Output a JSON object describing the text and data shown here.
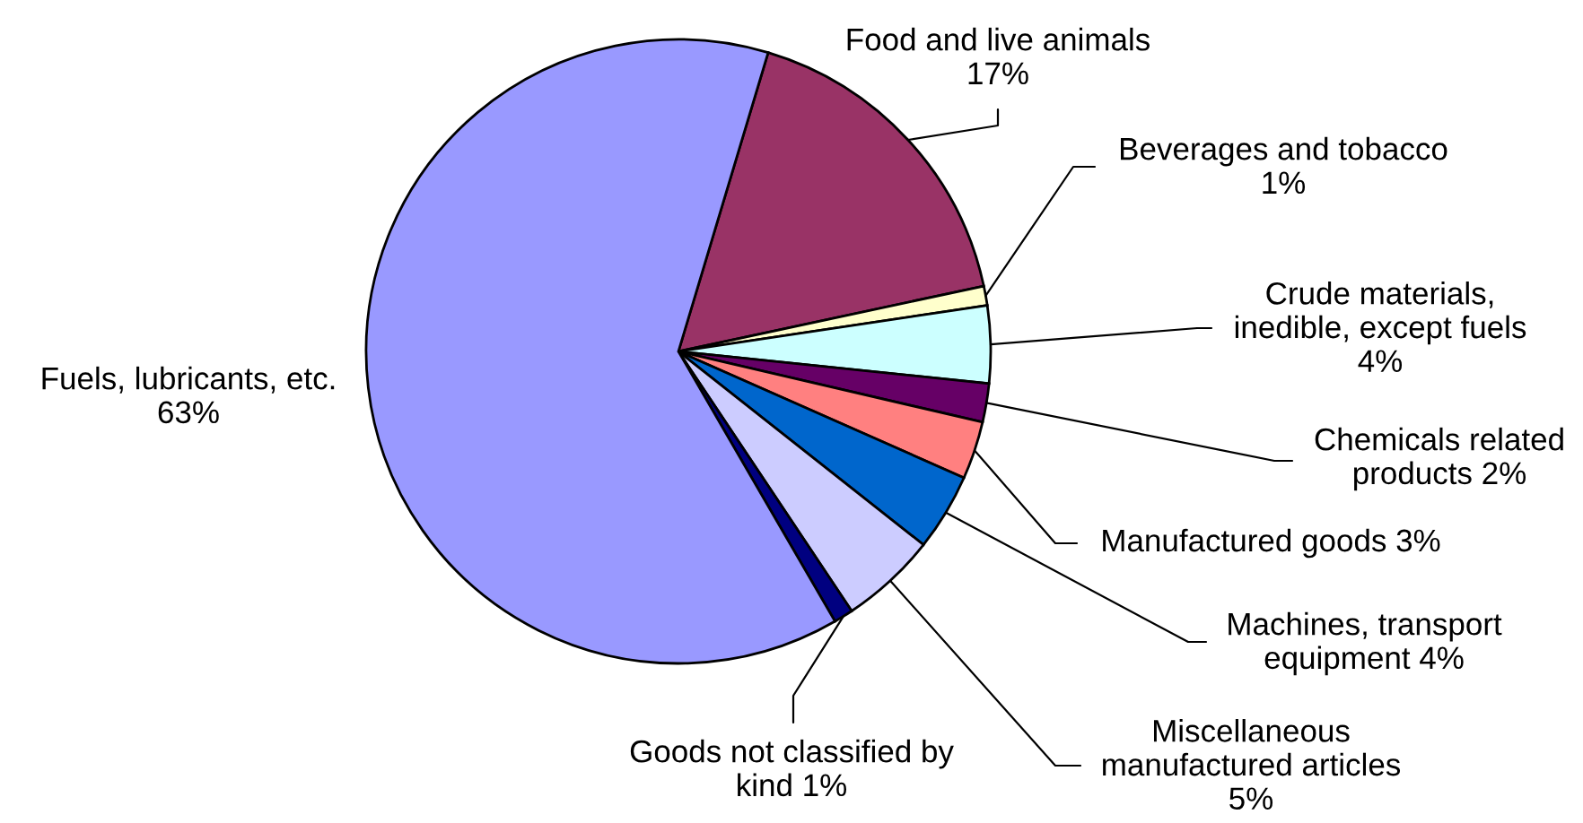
{
  "chart_data": {
    "type": "pie",
    "categories": [
      "Food and live animals",
      "Beverages and tobacco",
      "Crude materials, inedible, except fuels",
      "Chemicals related products",
      "Manufactured goods",
      "Machines, transport equipment",
      "Miscellaneous manufactured articles",
      "Goods not classified by kind",
      "Fuels, lubricants, etc."
    ],
    "values": [
      17,
      1,
      4,
      2,
      3,
      4,
      5,
      1,
      63
    ],
    "value_labels": [
      "17%",
      "1%",
      "4%",
      "2%",
      "3%",
      "4%",
      "5%",
      "1%",
      "63%"
    ],
    "colors": [
      "#993366",
      "#ffffcc",
      "#ccffff",
      "#660066",
      "#ff8080",
      "#0066cc",
      "#ccccff",
      "#000080",
      "#9999ff"
    ]
  }
}
